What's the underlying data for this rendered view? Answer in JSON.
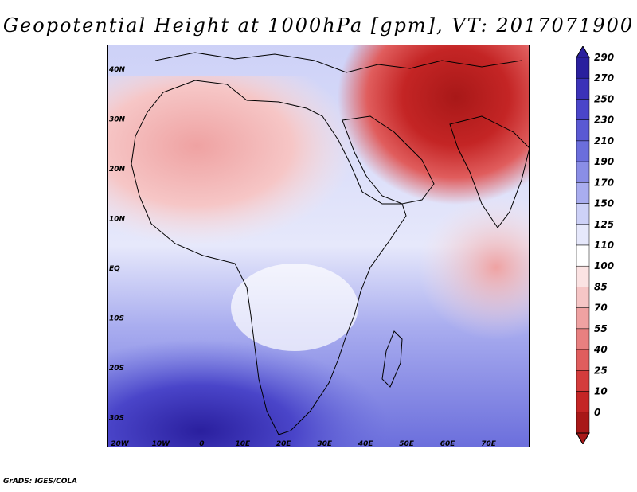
{
  "title": "Geopotential Height at 1000hPa [gpm], VT: 2017071900",
  "credit": "GrADS: IGES/COLA",
  "map": {
    "lon_labels": [
      "20W",
      "10W",
      "0",
      "10E",
      "20E",
      "30E",
      "40E",
      "50E",
      "60E",
      "70E"
    ],
    "lat_labels": [
      "40N",
      "30N",
      "20N",
      "10N",
      "EQ",
      "10S",
      "20S",
      "30S"
    ],
    "lon_range": [
      -23,
      80
    ],
    "lat_range": [
      -36,
      45
    ]
  },
  "colorbar": {
    "levels": [
      "290",
      "270",
      "250",
      "230",
      "210",
      "190",
      "170",
      "150",
      "125",
      "110",
      "100",
      "85",
      "70",
      "55",
      "40",
      "25",
      "10",
      "0"
    ],
    "colors": [
      "#2a1f9e",
      "#3b32b8",
      "#4a45c9",
      "#5a59d3",
      "#6b6edc",
      "#8a8ee6",
      "#a9adef",
      "#cdd1f7",
      "#e6e8fb",
      "#ffffff",
      "#fbe3e3",
      "#f6c6c6",
      "#efa2a2",
      "#e88080",
      "#e05d5d",
      "#d43c3c",
      "#c42525",
      "#a81818"
    ]
  }
}
